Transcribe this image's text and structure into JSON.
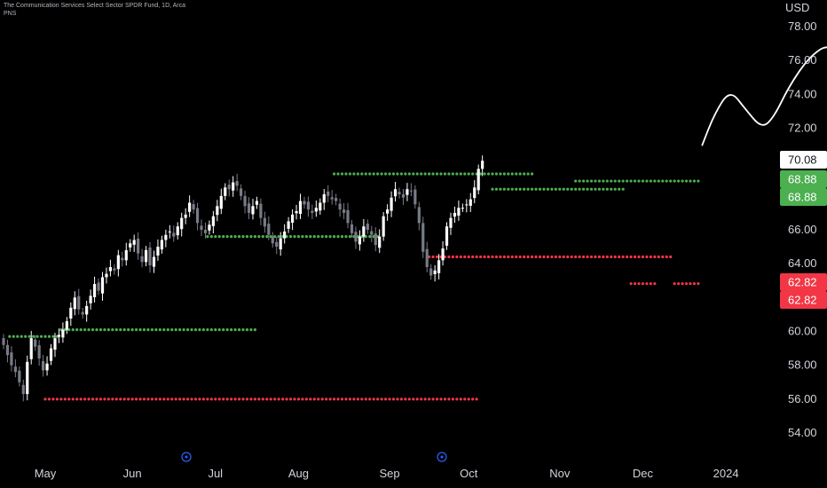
{
  "header": {
    "title": "The Communication Services Select Sector SPDR Fund, 1D, Arca",
    "indicator": "PNS"
  },
  "price_axis": {
    "currency": "USD",
    "ticks": [
      "78.00",
      "76.00",
      "74.00",
      "72.00",
      "72.00",
      "70.00",
      "68.00",
      "66.00",
      "64.00",
      "62.00",
      "60.00",
      "58.00",
      "56.00",
      "54.00"
    ]
  },
  "time_axis": {
    "ticks": [
      "May",
      "Jun",
      "Jul",
      "Aug",
      "Sep",
      "Oct",
      "Nov",
      "Dec",
      "2024"
    ]
  },
  "price_tags": {
    "last": "70.08",
    "resistance_1": "68.88",
    "resistance_2": "68.88",
    "support_1": "62.82",
    "support_2": "62.82"
  },
  "colors": {
    "background": "#000000",
    "up_candle": "#ffffff",
    "down_candle": "#787b86",
    "resistance": "#4caf50",
    "support": "#f23645",
    "text": "#d1d4dc",
    "last_tag_bg": "#ffffff"
  },
  "chart_data": {
    "type": "candlestick",
    "title": "The Communication Services Select Sector SPDR Fund, 1D, Arca",
    "ylabel": "USD",
    "ylim": [
      53.2,
      79.6
    ],
    "time_ticks": [
      {
        "label": "May",
        "day": 0
      },
      {
        "label": "Jun",
        "day": 22
      },
      {
        "label": "Jul",
        "day": 43
      },
      {
        "label": "Aug",
        "day": 64
      },
      {
        "label": "Sep",
        "day": 87
      },
      {
        "label": "Oct",
        "day": 107
      },
      {
        "label": "Nov",
        "day": 130
      },
      {
        "label": "Dec",
        "day": 151
      },
      {
        "label": "2024",
        "day": 172
      }
    ],
    "candles_close": [
      59.2,
      58.6,
      58.0,
      57.6,
      57.0,
      56.3,
      58.2,
      59.6,
      59.1,
      58.4,
      57.7,
      58.1,
      59.0,
      59.6,
      59.8,
      60.1,
      60.6,
      61.4,
      62.0,
      61.3,
      61.0,
      61.5,
      62.1,
      62.8,
      62.4,
      63.2,
      63.4,
      63.8,
      63.6,
      64.5,
      64.2,
      64.8,
      65.2,
      65.4,
      64.6,
      64.1,
      64.8,
      63.9,
      64.4,
      65.0,
      65.4,
      65.7,
      65.9,
      65.6,
      66.2,
      66.7,
      66.9,
      67.6,
      67.2,
      66.4,
      66.0,
      65.8,
      66.3,
      66.8,
      67.4,
      68.0,
      68.5,
      68.4,
      68.8,
      68.6,
      68.0,
      67.4,
      67.0,
      67.4,
      67.7,
      66.7,
      66.2,
      65.7,
      65.2,
      65.0,
      65.5,
      65.9,
      66.5,
      66.9,
      67.1,
      67.7,
      67.5,
      67.2,
      67.0,
      67.3,
      67.6,
      68.1,
      68.0,
      67.8,
      67.7,
      67.2,
      67.0,
      66.4,
      65.8,
      65.3,
      65.6,
      66.2,
      66.0,
      65.7,
      65.1,
      65.6,
      66.8,
      67.2,
      67.9,
      68.4,
      68.1,
      67.9,
      68.4,
      68.3,
      67.5,
      66.4,
      64.7,
      63.8,
      63.3,
      63.6,
      64.2,
      64.9,
      66.2,
      66.7,
      67.0,
      67.3,
      67.3,
      67.5,
      67.8,
      68.5,
      69.6,
      70.08
    ],
    "resistance_levels": [
      {
        "value": 59.7,
        "from_day": 0,
        "to_day": 12
      },
      {
        "value": 60.1,
        "from_day": 13,
        "to_day": 62
      },
      {
        "value": 65.6,
        "from_day": 50,
        "to_day": 93
      },
      {
        "value": 69.3,
        "from_day": 82,
        "to_day": 132
      },
      {
        "value": 68.4,
        "from_day": 122,
        "to_day": 155
      },
      {
        "value": 68.88,
        "from_day": 143,
        "to_day": 174
      }
    ],
    "support_levels": [
      {
        "value": 56.0,
        "from_day": 9,
        "to_day": 118
      },
      {
        "value": 64.4,
        "from_day": 106,
        "to_day": 167
      },
      {
        "value": 62.82,
        "from_day": 157,
        "to_day": 163
      },
      {
        "value": 62.82,
        "from_day": 168,
        "to_day": 174
      }
    ],
    "annotation_path": [
      [
        175,
        71.0
      ],
      [
        178,
        72.8
      ],
      [
        182,
        74.3
      ],
      [
        186,
        73.1
      ],
      [
        190,
        72.0
      ],
      [
        193,
        72.6
      ],
      [
        197,
        74.5
      ],
      [
        202,
        76.2
      ],
      [
        207,
        77.0
      ],
      [
        210,
        76.0
      ]
    ]
  }
}
